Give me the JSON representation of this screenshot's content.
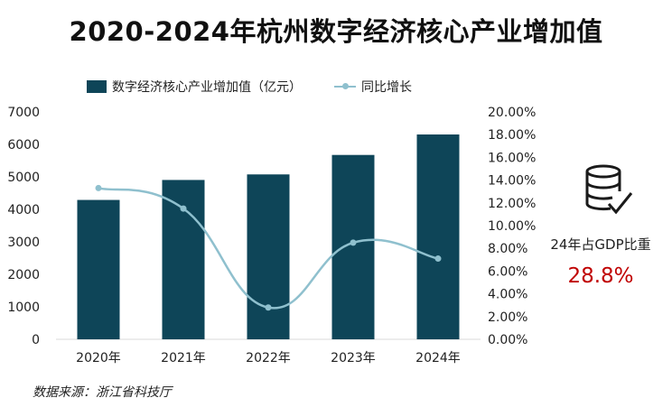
{
  "title": "2020-2024年杭州数字经济核心产业增加值",
  "legend": {
    "bar_label": "数字经济核心产业增加值（亿元）",
    "line_label": "同比增长"
  },
  "side_panel": {
    "icon": "database-check-icon",
    "label": "24年占GDP比重",
    "value": "28.8%"
  },
  "source": "数据来源：浙江省科技厅",
  "colors": {
    "bar": "#0e4558",
    "line": "#8fc0ce",
    "highlight": "#c00000"
  },
  "chart_data": {
    "type": "bar",
    "title": "2020-2024年杭州数字经济核心产业增加值",
    "categories": [
      "2020年",
      "2021年",
      "2022年",
      "2023年",
      "2024年"
    ],
    "series": [
      {
        "name": "数字经济核心产业增加值（亿元）",
        "type": "bar",
        "axis": "left",
        "values": [
          4290,
          4905,
          5076,
          5675,
          6305
        ]
      },
      {
        "name": "同比增长",
        "type": "line",
        "axis": "right",
        "smooth": true,
        "values": [
          0.133,
          0.115,
          0.028,
          0.085,
          0.071
        ]
      }
    ],
    "y_left": {
      "min": 0,
      "max": 7000,
      "ticks": [
        0,
        1000,
        2000,
        3000,
        4000,
        5000,
        6000,
        7000
      ],
      "tick_labels": [
        "0",
        "1000",
        "2000",
        "3000",
        "4000",
        "5000",
        "6000",
        "7000"
      ]
    },
    "y_right": {
      "min": 0,
      "max": 0.2,
      "ticks": [
        0,
        0.02,
        0.04,
        0.06,
        0.08,
        0.1,
        0.12,
        0.14,
        0.16,
        0.18,
        0.2
      ],
      "tick_labels": [
        "0.00%",
        "2.00%",
        "4.00%",
        "6.00%",
        "8.00%",
        "10.00%",
        "12.00%",
        "14.00%",
        "16.00%",
        "18.00%",
        "20.00%"
      ]
    },
    "grid": false,
    "legend_position": "top"
  }
}
